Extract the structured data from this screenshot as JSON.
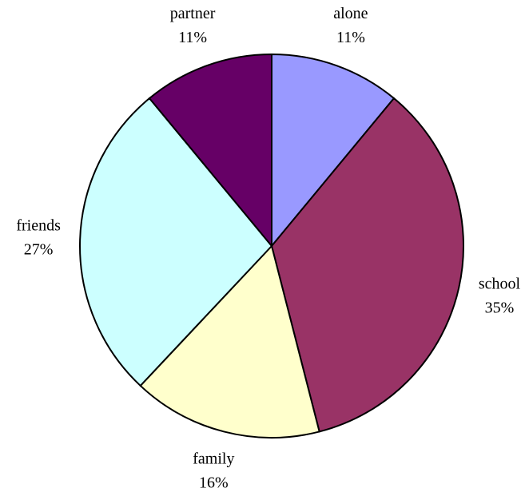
{
  "chart_data": {
    "type": "pie",
    "categories": [
      "alone",
      "school",
      "family",
      "friends",
      "partner"
    ],
    "values": [
      11,
      35,
      16,
      27,
      11
    ],
    "value_labels": [
      "11%",
      "35%",
      "16%",
      "27%",
      "11%"
    ],
    "colors": [
      "#9999ff",
      "#993366",
      "#ffffcc",
      "#ccffff",
      "#660066"
    ]
  }
}
